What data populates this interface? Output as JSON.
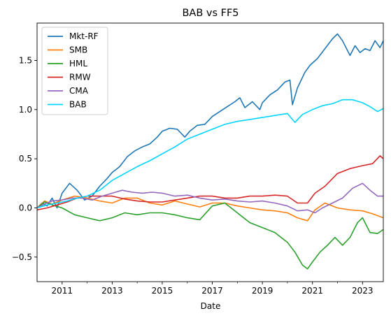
{
  "chart_data": {
    "type": "line",
    "title": "BAB vs FF5",
    "xlabel": "Date",
    "ylabel": "",
    "xlim": [
      2010.0,
      2023.83
    ],
    "ylim": [
      -0.75,
      1.88
    ],
    "grid": false,
    "legend_position": "top-left",
    "x_ticks": [
      2011,
      2013,
      2015,
      2017,
      2019,
      2021,
      2023
    ],
    "x_tick_labels": [
      "2011",
      "2013",
      "2015",
      "2017",
      "2019",
      "2021",
      "2023"
    ],
    "x_minor_ticks": [
      2012,
      2014,
      2016,
      2018,
      2020,
      2022
    ],
    "y_ticks": [
      -0.5,
      0.0,
      0.5,
      1.0,
      1.5
    ],
    "y_tick_labels": [
      "−0.5",
      "0.0",
      "0.5",
      "1.0",
      "1.5"
    ],
    "series": [
      {
        "name": "Mkt-RF",
        "color": "#1f77b4",
        "x": [
          2010.0,
          2010.2,
          2010.4,
          2010.6,
          2010.8,
          2011.0,
          2011.3,
          2011.6,
          2011.9,
          2012.2,
          2012.5,
          2012.8,
          2013.0,
          2013.3,
          2013.6,
          2013.9,
          2014.2,
          2014.5,
          2014.8,
          2015.0,
          2015.3,
          2015.6,
          2015.9,
          2016.1,
          2016.4,
          2016.7,
          2017.0,
          2017.3,
          2017.6,
          2017.9,
          2018.1,
          2018.3,
          2018.6,
          2018.9,
          2019.0,
          2019.3,
          2019.6,
          2019.9,
          2020.1,
          2020.2,
          2020.4,
          2020.7,
          2020.9,
          2021.2,
          2021.5,
          2021.8,
          2022.0,
          2022.2,
          2022.5,
          2022.7,
          2022.9,
          2023.1,
          2023.3,
          2023.5,
          2023.7,
          2023.83
        ],
        "y": [
          0.0,
          0.05,
          0.02,
          0.1,
          0.0,
          0.15,
          0.25,
          0.18,
          0.08,
          0.12,
          0.22,
          0.3,
          0.36,
          0.42,
          0.52,
          0.58,
          0.62,
          0.65,
          0.72,
          0.78,
          0.81,
          0.8,
          0.72,
          0.78,
          0.84,
          0.85,
          0.93,
          0.98,
          1.03,
          1.08,
          1.12,
          1.02,
          1.08,
          1.0,
          1.07,
          1.15,
          1.2,
          1.28,
          1.3,
          1.05,
          1.22,
          1.38,
          1.45,
          1.52,
          1.62,
          1.72,
          1.77,
          1.7,
          1.55,
          1.65,
          1.58,
          1.62,
          1.6,
          1.7,
          1.63,
          1.7
        ]
      },
      {
        "name": "SMB",
        "color": "#ff7f0e",
        "x": [
          2010.0,
          2010.3,
          2010.6,
          2011.0,
          2011.5,
          2012.0,
          2012.5,
          2013.0,
          2013.5,
          2014.0,
          2014.5,
          2015.0,
          2015.5,
          2016.0,
          2016.5,
          2017.0,
          2017.5,
          2018.0,
          2018.5,
          2019.0,
          2019.5,
          2020.0,
          2020.4,
          2020.8,
          2021.1,
          2021.5,
          2022.0,
          2022.5,
          2023.0,
          2023.4,
          2023.83
        ],
        "y": [
          0.0,
          0.07,
          0.04,
          0.08,
          0.12,
          0.1,
          0.07,
          0.05,
          0.1,
          0.1,
          0.05,
          0.03,
          0.07,
          0.04,
          0.01,
          0.05,
          0.05,
          0.02,
          0.0,
          -0.02,
          -0.03,
          -0.05,
          -0.1,
          -0.13,
          -0.02,
          0.05,
          0.0,
          -0.02,
          -0.03,
          -0.06,
          -0.1
        ]
      },
      {
        "name": "HML",
        "color": "#2ca02c",
        "x": [
          2010.0,
          2010.3,
          2010.6,
          2011.0,
          2011.5,
          2012.0,
          2012.5,
          2013.0,
          2013.5,
          2014.0,
          2014.5,
          2015.0,
          2015.5,
          2016.0,
          2016.5,
          2017.0,
          2017.5,
          2018.0,
          2018.5,
          2019.0,
          2019.5,
          2020.0,
          2020.3,
          2020.6,
          2020.8,
          2021.0,
          2021.3,
          2021.6,
          2021.9,
          2022.2,
          2022.5,
          2022.8,
          2023.0,
          2023.3,
          2023.6,
          2023.83
        ],
        "y": [
          0.0,
          0.06,
          0.03,
          0.0,
          -0.07,
          -0.1,
          -0.13,
          -0.1,
          -0.05,
          -0.07,
          -0.05,
          -0.05,
          -0.07,
          -0.1,
          -0.12,
          0.02,
          0.05,
          -0.05,
          -0.15,
          -0.2,
          -0.25,
          -0.35,
          -0.45,
          -0.58,
          -0.62,
          -0.55,
          -0.45,
          -0.38,
          -0.3,
          -0.38,
          -0.3,
          -0.15,
          -0.1,
          -0.25,
          -0.26,
          -0.22
        ]
      },
      {
        "name": "RMW",
        "color": "#d62728",
        "x": [
          2010.0,
          2010.4,
          2010.8,
          2011.2,
          2011.6,
          2012.0,
          2012.5,
          2013.0,
          2013.5,
          2014.0,
          2014.5,
          2015.0,
          2015.5,
          2016.0,
          2016.5,
          2017.0,
          2017.5,
          2018.0,
          2018.5,
          2019.0,
          2019.5,
          2020.0,
          2020.4,
          2020.8,
          2021.1,
          2021.5,
          2022.0,
          2022.5,
          2023.0,
          2023.4,
          2023.7,
          2023.83
        ],
        "y": [
          -0.02,
          0.0,
          0.03,
          0.06,
          0.1,
          0.12,
          0.12,
          0.12,
          0.09,
          0.07,
          0.06,
          0.06,
          0.08,
          0.1,
          0.12,
          0.12,
          0.1,
          0.1,
          0.12,
          0.12,
          0.13,
          0.12,
          0.05,
          0.05,
          0.15,
          0.22,
          0.35,
          0.4,
          0.43,
          0.45,
          0.53,
          0.5
        ]
      },
      {
        "name": "CMA",
        "color": "#9467bd",
        "x": [
          2010.0,
          2010.3,
          2010.6,
          2011.0,
          2011.4,
          2011.8,
          2012.2,
          2012.6,
          2013.0,
          2013.4,
          2013.8,
          2014.2,
          2014.6,
          2015.0,
          2015.5,
          2016.0,
          2016.5,
          2017.0,
          2017.5,
          2018.0,
          2018.5,
          2019.0,
          2019.5,
          2020.0,
          2020.4,
          2020.8,
          2021.1,
          2021.4,
          2021.8,
          2022.2,
          2022.6,
          2023.0,
          2023.3,
          2023.6,
          2023.83
        ],
        "y": [
          0.0,
          0.04,
          0.07,
          0.08,
          0.1,
          0.1,
          0.08,
          0.12,
          0.15,
          0.18,
          0.16,
          0.15,
          0.16,
          0.15,
          0.12,
          0.13,
          0.1,
          0.08,
          0.09,
          0.07,
          0.06,
          0.07,
          0.05,
          0.02,
          -0.03,
          -0.02,
          -0.05,
          0.0,
          0.05,
          0.1,
          0.2,
          0.25,
          0.18,
          0.12,
          0.12
        ]
      },
      {
        "name": "BAB",
        "color": "#00d5ff",
        "x": [
          2010.0,
          2010.4,
          2010.8,
          2011.2,
          2011.6,
          2012.0,
          2012.5,
          2013.0,
          2013.5,
          2014.0,
          2014.5,
          2015.0,
          2015.5,
          2016.0,
          2016.5,
          2017.0,
          2017.5,
          2018.0,
          2018.5,
          2019.0,
          2019.5,
          2020.0,
          2020.3,
          2020.6,
          2021.0,
          2021.4,
          2021.8,
          2022.2,
          2022.6,
          2023.0,
          2023.3,
          2023.6,
          2023.83
        ],
        "y": [
          0.0,
          0.03,
          0.05,
          0.07,
          0.1,
          0.12,
          0.18,
          0.28,
          0.35,
          0.42,
          0.48,
          0.55,
          0.62,
          0.7,
          0.75,
          0.8,
          0.85,
          0.88,
          0.9,
          0.92,
          0.94,
          0.96,
          0.87,
          0.95,
          1.0,
          1.04,
          1.06,
          1.1,
          1.1,
          1.07,
          1.03,
          0.98,
          1.01
        ]
      }
    ]
  }
}
